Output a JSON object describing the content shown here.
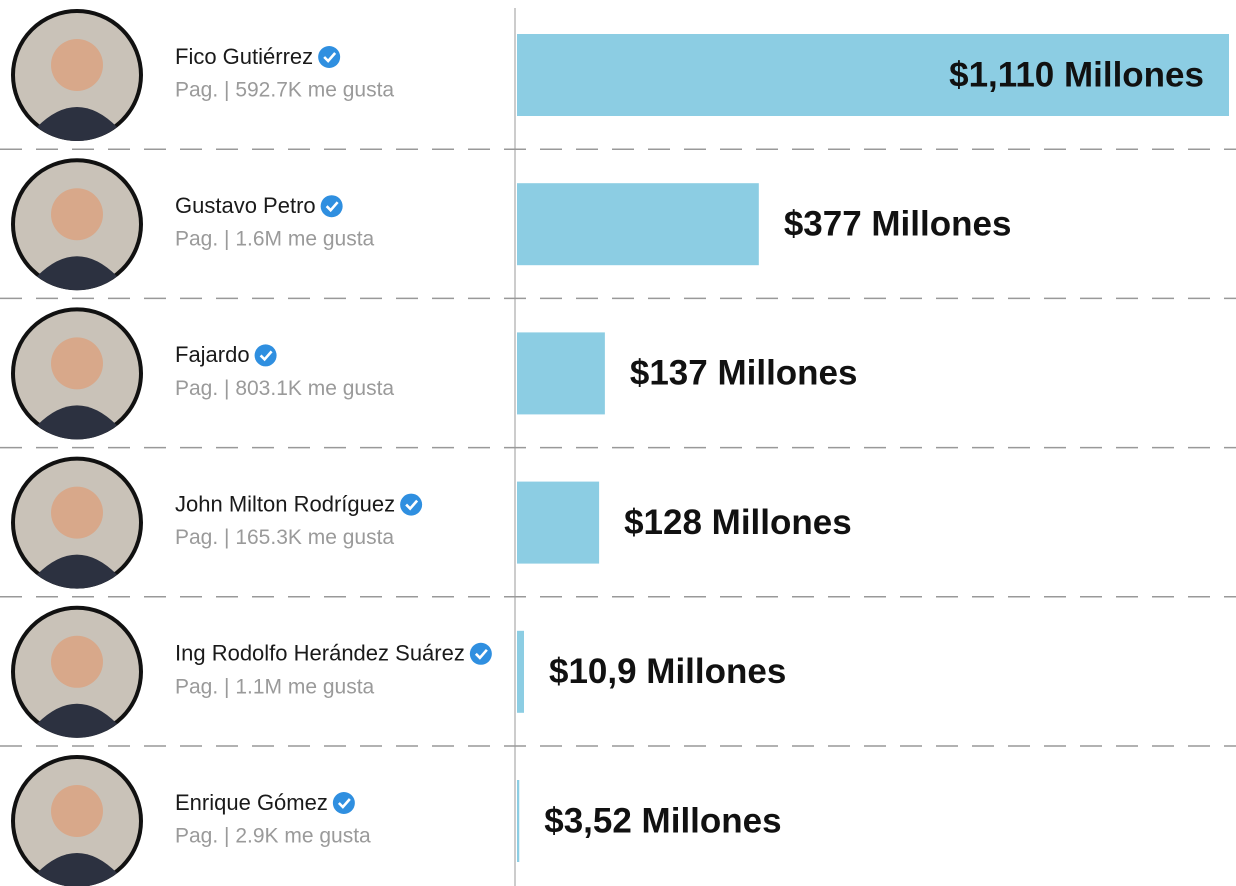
{
  "chart_data": {
    "type": "bar",
    "orientation": "horizontal",
    "categories": [
      "Fico Gutiérrez",
      "Gustavo Petro",
      "Fajardo",
      "John Milton Rodríguez",
      "Ing Rodolfo Herández Suárez",
      "Enrique Gómez"
    ],
    "page_likes": [
      "Pag. | 592.7K me gusta",
      "Pag. | 1.6M me gusta",
      "Pag. | 803.1K me gusta",
      "Pag. | 165.3K me gusta",
      "Pag. | 1.1M me gusta",
      "Pag. | 2.9K me gusta"
    ],
    "values": [
      1110,
      377,
      137,
      128,
      10.9,
      3.52
    ],
    "value_labels": [
      "$1,110 Millones",
      "$377 Millones",
      "$137 Millones",
      "$128 Millones",
      "$10,9 Millones",
      "$3,52 Millones"
    ],
    "color": "#8ccde3",
    "xlim": [
      0,
      1110
    ]
  }
}
